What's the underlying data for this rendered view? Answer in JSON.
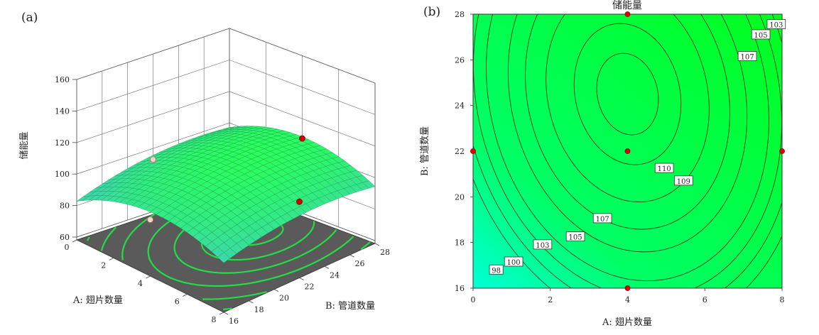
{
  "chart_data": [
    {
      "panel": "(a)",
      "type": "surface3d",
      "zlabel": "储能量",
      "xlabel": "A: 翅片数量",
      "ylabel": "B: 管道数量",
      "x_range": [
        0,
        8
      ],
      "y_range": [
        16,
        28
      ],
      "z_range": [
        60,
        160
      ],
      "x_ticks": [
        "0",
        "2",
        "4",
        "6",
        "8"
      ],
      "y_ticks": [
        "16",
        "18",
        "20",
        "22",
        "24",
        "26",
        "28"
      ],
      "z_ticks": [
        "60",
        "80",
        "100",
        "120",
        "140",
        "160"
      ],
      "surface_color": "#33e88a",
      "floor_color": "#5a5a5a",
      "floor_contour_color": "#22dd44",
      "model": {
        "center": [
          4,
          24.5
        ],
        "peak": 110.5,
        "xx": 0.8,
        "yy": 0.16,
        "xy": 0.1
      },
      "design_points": [
        {
          "x": 4,
          "y": 28,
          "z": 107.5,
          "above_surface": true
        },
        {
          "x": 8,
          "y": 22,
          "z": 106.5,
          "above_surface": true
        },
        {
          "x": 0,
          "y": 22,
          "z": 93,
          "above_surface": false
        },
        {
          "x": 4,
          "y": 16,
          "z": 94,
          "above_surface": false
        }
      ]
    },
    {
      "panel": "(b)",
      "type": "contour",
      "title": "储能量",
      "xlabel": "A: 翅片数量",
      "ylabel": "B: 管道数量",
      "x_range": [
        0,
        8
      ],
      "y_range": [
        16,
        28
      ],
      "x_ticks": [
        "0",
        "2",
        "4",
        "6",
        "8"
      ],
      "y_ticks": [
        "16",
        "18",
        "20",
        "22",
        "24",
        "26",
        "28"
      ],
      "levels": [
        98,
        100,
        103,
        105,
        107,
        109,
        110
      ],
      "contour_labels": [
        {
          "text": "98",
          "x": 0.6,
          "y": 16.8
        },
        {
          "text": "100",
          "x": 1.05,
          "y": 17.15
        },
        {
          "text": "103",
          "x": 1.8,
          "y": 17.9
        },
        {
          "text": "105",
          "x": 2.65,
          "y": 18.25
        },
        {
          "text": "107",
          "x": 3.35,
          "y": 19.05
        },
        {
          "text": "109",
          "x": 5.45,
          "y": 20.7
        },
        {
          "text": "110",
          "x": 4.95,
          "y": 21.25
        },
        {
          "text": "107",
          "x": 7.1,
          "y": 26.15
        },
        {
          "text": "105",
          "x": 7.45,
          "y": 27.1
        },
        {
          "text": "103",
          "x": 7.85,
          "y": 27.55
        }
      ],
      "design_points": [
        {
          "x": 4,
          "y": 28
        },
        {
          "x": 0,
          "y": 22
        },
        {
          "x": 4,
          "y": 22
        },
        {
          "x": 8,
          "y": 22
        },
        {
          "x": 4,
          "y": 16
        }
      ],
      "colors": {
        "high": "#00ff1e",
        "low": "#00ffd8",
        "point": "#e00000"
      }
    }
  ]
}
